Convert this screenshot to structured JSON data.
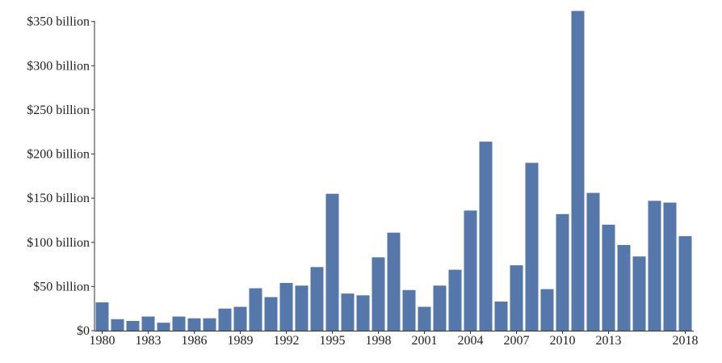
{
  "chart_data": {
    "type": "bar",
    "title": "",
    "xlabel": "",
    "ylabel": "",
    "ylim": [
      0,
      360
    ],
    "bar_color": "#5577aa",
    "y_ticks": [
      {
        "value": 0,
        "label": "$0"
      },
      {
        "value": 50,
        "label": "$50 billion"
      },
      {
        "value": 100,
        "label": "$100 billion"
      },
      {
        "value": 150,
        "label": "$150 billion"
      },
      {
        "value": 200,
        "label": "$200 billion"
      },
      {
        "value": 250,
        "label": "$250 billion"
      },
      {
        "value": 300,
        "label": "$300 billion"
      },
      {
        "value": 350,
        "label": "$350 billion"
      }
    ],
    "x_tick_labels": [
      "1980",
      "1983",
      "1986",
      "1989",
      "1992",
      "1995",
      "1998",
      "2001",
      "2004",
      "2007",
      "2010",
      "2013",
      "2018"
    ],
    "categories": [
      "1980",
      "1981",
      "1982",
      "1983",
      "1984",
      "1985",
      "1986",
      "1987",
      "1988",
      "1989",
      "1990",
      "1991",
      "1992",
      "1993",
      "1994",
      "1995",
      "1996",
      "1997",
      "1998",
      "1999",
      "2000",
      "2001",
      "2002",
      "2003",
      "2004",
      "2005",
      "2006",
      "2007",
      "2008",
      "2009",
      "2010",
      "2011",
      "2012",
      "2013",
      "2014",
      "2015",
      "2016",
      "2017",
      "2018"
    ],
    "values": [
      32,
      13,
      11,
      16,
      9,
      16,
      14,
      14,
      25,
      27,
      48,
      38,
      54,
      51,
      72,
      155,
      42,
      40,
      83,
      111,
      46,
      27,
      51,
      69,
      136,
      214,
      33,
      74,
      190,
      47,
      132,
      362,
      156,
      120,
      97,
      84,
      147,
      145,
      107
    ]
  }
}
